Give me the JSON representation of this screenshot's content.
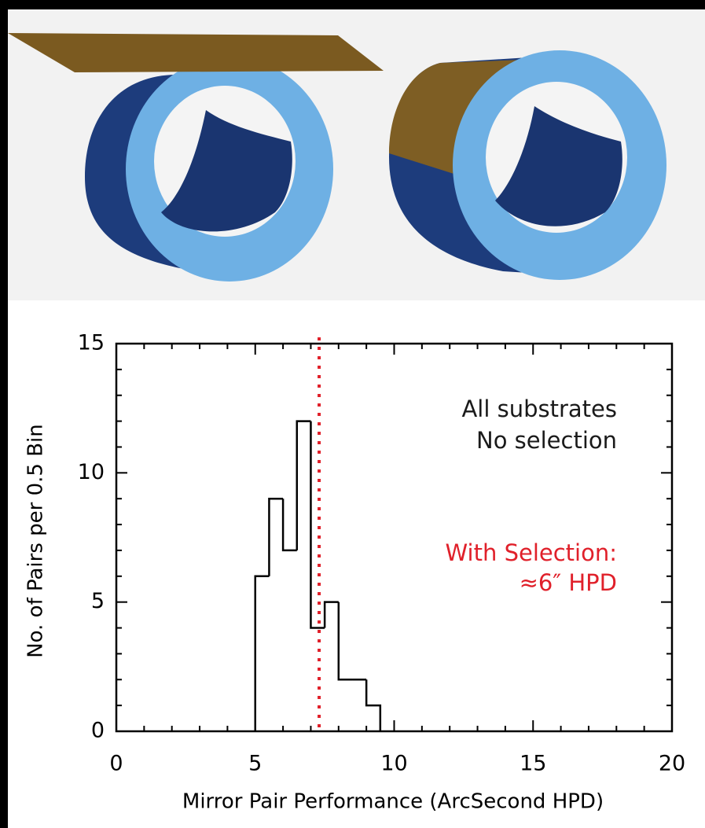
{
  "chart_data": {
    "type": "histogram",
    "bins": [
      5,
      5.5,
      6,
      6.5,
      7,
      7.5,
      8,
      8.5,
      9,
      9.5
    ],
    "counts": [
      6,
      9,
      7,
      12,
      4,
      5,
      2,
      2,
      1
    ],
    "color": "#000000",
    "xlim": [
      0,
      20
    ],
    "xticks": [
      0,
      5,
      10,
      15,
      20
    ],
    "ylim": [
      0,
      15
    ],
    "yticks": [
      0,
      5,
      10,
      15
    ],
    "minor_ticks_per_major": 5,
    "xlabel": "Mirror Pair Performance (ArcSecond HPD)",
    "ylabel": "No. of Pairs per 0.5 Bin",
    "reference_line": {
      "x": 7.3,
      "color": "#e0202a"
    },
    "annotations": [
      {
        "text": "All substrates",
        "color": "#1a1a1a"
      },
      {
        "text": "No selection",
        "color": "#1a1a1a"
      },
      {
        "text": "With Selection:",
        "color": "#e0202a"
      },
      {
        "text": "≈6″ HPD",
        "color": "#e0202a"
      }
    ]
  }
}
